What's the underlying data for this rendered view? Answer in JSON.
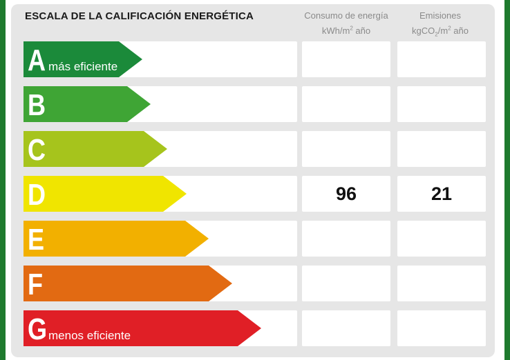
{
  "title": "ESCALA DE LA CALIFICACIÓN ENERGÉTICA",
  "columns": {
    "consumo": {
      "line1": "Consumo de energía",
      "line2a": "kWh/m",
      "line2sup": "2",
      "line2b": " año"
    },
    "emisiones": {
      "line1": "Emisiones",
      "line2a": "kgCO",
      "line2sub": "2",
      "line2b": "/m",
      "line2sup": "2",
      "line2c": " año"
    }
  },
  "ratings": [
    {
      "letter": "A",
      "label": "más eficiente",
      "color": "#1b8a3a"
    },
    {
      "letter": "B",
      "label": "",
      "color": "#3fa535"
    },
    {
      "letter": "C",
      "label": "",
      "color": "#a6c41c"
    },
    {
      "letter": "D",
      "label": "",
      "color": "#f0e500"
    },
    {
      "letter": "E",
      "label": "",
      "color": "#f2b000"
    },
    {
      "letter": "F",
      "label": "",
      "color": "#e26a12"
    },
    {
      "letter": "G",
      "label": "menos eficiente",
      "color": "#e01f26"
    }
  ],
  "values": {
    "rating": "D",
    "consumo": "96",
    "emisiones": "21"
  }
}
